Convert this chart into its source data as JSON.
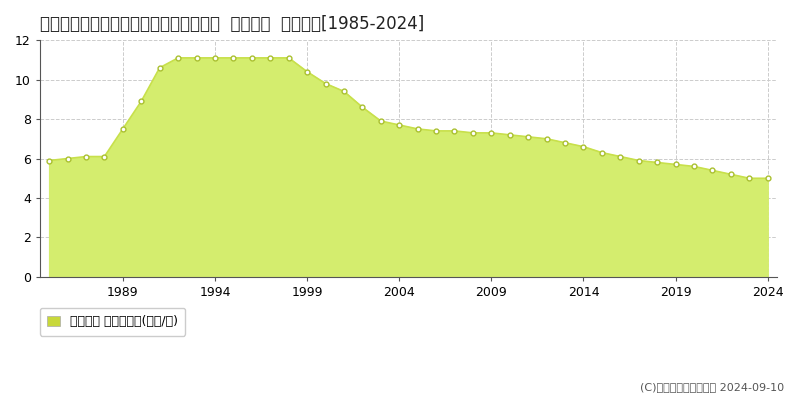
{
  "title": "兵庫県宝塚市大原野字森谷２９番１２外  地価公示  地価推移[1985-2024]",
  "years": [
    1985,
    1986,
    1987,
    1988,
    1989,
    1990,
    1991,
    1992,
    1993,
    1994,
    1995,
    1996,
    1997,
    1998,
    1999,
    2000,
    2001,
    2002,
    2003,
    2004,
    2005,
    2006,
    2007,
    2008,
    2009,
    2010,
    2011,
    2012,
    2013,
    2014,
    2015,
    2016,
    2017,
    2018,
    2019,
    2020,
    2021,
    2022,
    2023,
    2024
  ],
  "values": [
    5.9,
    6.0,
    6.1,
    6.1,
    7.5,
    8.9,
    10.6,
    11.1,
    11.1,
    11.1,
    11.1,
    11.1,
    11.1,
    11.1,
    10.4,
    9.8,
    9.4,
    8.6,
    7.9,
    7.7,
    7.5,
    7.4,
    7.4,
    7.3,
    7.3,
    7.2,
    7.1,
    7.0,
    6.8,
    6.6,
    6.3,
    6.1,
    5.9,
    5.8,
    5.7,
    5.6,
    5.4,
    5.2,
    5.0,
    5.0
  ],
  "line_color": "#c8e04b",
  "fill_color": "#d4ed6e",
  "fill_alpha": 1.0,
  "marker_facecolor": "#ffffff",
  "marker_edgecolor": "#aac030",
  "marker_size": 3.5,
  "marker_edgewidth": 1.0,
  "ylim": [
    0,
    12
  ],
  "yticks": [
    0,
    2,
    4,
    6,
    8,
    10,
    12
  ],
  "xtick_years": [
    1989,
    1994,
    1999,
    2004,
    2009,
    2014,
    2019,
    2024
  ],
  "xlim_left": 1984.5,
  "xlim_right": 2024.5,
  "grid_color": "#cccccc",
  "grid_style": "--",
  "background_color": "#ffffff",
  "plot_bg_color": "#ffffff",
  "legend_label": "地価公示 平均坪単価(万円/坪)",
  "legend_marker_color": "#c8d83a",
  "copyright_text": "(C)土地価格ドットコム 2024-09-10",
  "title_fontsize": 12,
  "tick_fontsize": 9,
  "legend_fontsize": 9,
  "copyright_fontsize": 8,
  "spine_color": "#555555"
}
